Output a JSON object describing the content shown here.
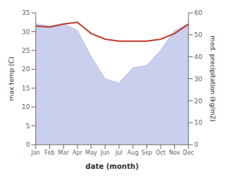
{
  "chart_data": {
    "type": "line",
    "categories": [
      "Jan",
      "Feb",
      "Mar",
      "Apr",
      "May",
      "Jun",
      "Jul",
      "Aug",
      "Sep",
      "Oct",
      "Nov",
      "Dec"
    ],
    "xlabel": "date (month)",
    "ylabel": "max temp (C)",
    "y2label": "med. precipitation (kg/m2)",
    "series": [
      {
        "type": "area",
        "axis": "y2",
        "color": "#b8bfe8",
        "values": [
          55,
          54,
          55,
          52,
          40,
          30,
          28,
          35,
          36,
          43,
          52,
          55
        ]
      },
      {
        "type": "line",
        "color": "#c0392b",
        "values": [
          31.5,
          31.2,
          32.0,
          32.5,
          29.5,
          28.0,
          27.5,
          27.5,
          27.5,
          28.0,
          29.5,
          32.0
        ]
      }
    ],
    "ylim": [
      0,
      35
    ],
    "yticks": [
      0,
      5,
      10,
      15,
      20,
      25,
      30,
      35
    ],
    "y2lim": [
      0,
      60
    ],
    "y2ticks": [
      0,
      10,
      20,
      30,
      40,
      50,
      60
    ],
    "grid": false
  }
}
